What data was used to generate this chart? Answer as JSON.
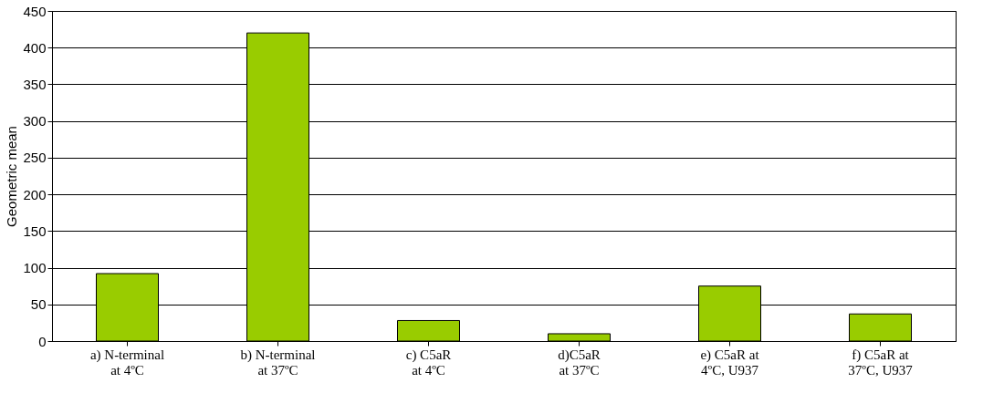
{
  "chart_data": {
    "type": "bar",
    "ylabel": "Geometric mean",
    "categories": [
      "a) N-terminal at 4ºC",
      "b) N-terminal at 37ºC",
      "c) C5aR at 4ºC",
      "d)C5aR at 37ºC",
      "e) C5aR at 4ºC, U937",
      "f) C5aR at 37ºC, U937"
    ],
    "values": [
      92,
      420,
      28,
      10,
      75,
      37
    ],
    "color": "#99cc00",
    "ylim": [
      0,
      450
    ],
    "yticks": [
      0,
      50,
      100,
      150,
      200,
      250,
      300,
      350,
      400,
      450
    ],
    "grid": "y"
  }
}
